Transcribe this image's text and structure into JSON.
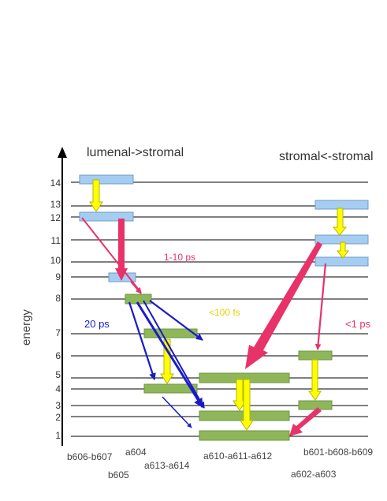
{
  "headers": {
    "left": "lumenal->stromal",
    "right": "stromal<-stromal"
  },
  "axis": {
    "label": "energy",
    "levels": [
      "14",
      "13",
      "12",
      "11",
      "10",
      "9",
      "8",
      "7",
      "6",
      "5",
      "4",
      "3",
      "2",
      "1"
    ]
  },
  "annotations": {
    "slow": "1-10 ps",
    "fast": "<100 fs",
    "blue": "20 ps",
    "red_right": "<1 ps"
  },
  "pigment_groups": {
    "b606_b607": "b606-b607",
    "b605": "b605",
    "a604": "a604",
    "a613_a614": "a613-a614",
    "a610_a611_a612": "a610-a611-a612",
    "b601_b608_b609": "b601-b608-b609",
    "a602_a603": "a602-a603"
  },
  "colors": {
    "chl_b": "#a5cdf2",
    "chl_a": "#8fb75a",
    "yellow_arrow": "#ffff00",
    "red_arrow": "#e8326a",
    "blue_arrow": "#1a1acc",
    "slow_text": "#e8326a",
    "fast_text": "#e6d200",
    "blue_text": "#1a1acc"
  }
}
